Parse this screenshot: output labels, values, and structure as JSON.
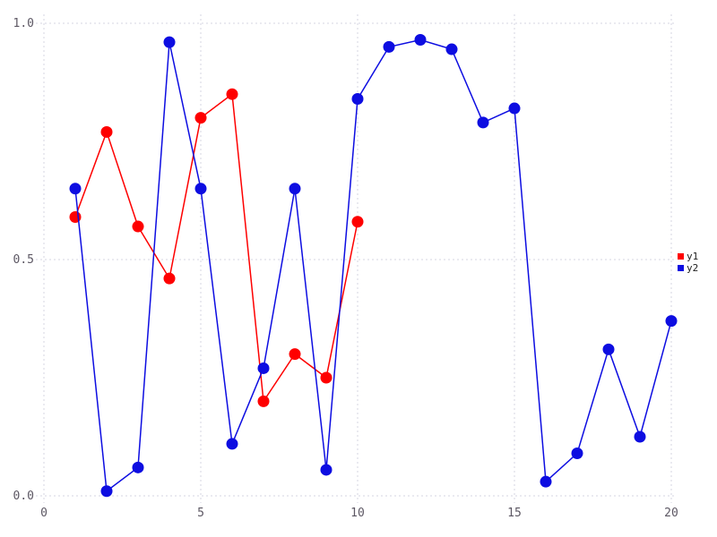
{
  "chart_data": {
    "type": "line",
    "title": "",
    "xlabel": "",
    "ylabel": "",
    "xlim": [
      0,
      20.5
    ],
    "ylim": [
      0,
      1.02
    ],
    "x_ticks": [
      0,
      5,
      10,
      15,
      20
    ],
    "x_tick_labels": [
      "0",
      "5",
      "10",
      "15",
      "20"
    ],
    "y_ticks": [
      0,
      0.5,
      1.0
    ],
    "y_tick_labels": [
      "0.0",
      "0.5",
      "1.0"
    ],
    "grid": "dotted",
    "legend_position": "center-right",
    "marker": "circle",
    "series": [
      {
        "name": "y1",
        "color": "#fe0000",
        "x": [
          1,
          2,
          3,
          4,
          5,
          6,
          7,
          8,
          9,
          10
        ],
        "y": [
          0.59,
          0.77,
          0.57,
          0.46,
          0.8,
          0.85,
          0.2,
          0.3,
          0.25,
          0.58
        ]
      },
      {
        "name": "y2",
        "color": "#0d0de1",
        "x": [
          1,
          2,
          3,
          4,
          5,
          6,
          7,
          8,
          9,
          10,
          11,
          12,
          13,
          14,
          15,
          16,
          17,
          18,
          19,
          20
        ],
        "y": [
          0.65,
          0.01,
          0.06,
          0.96,
          0.65,
          0.11,
          0.27,
          0.65,
          0.055,
          0.84,
          0.95,
          0.965,
          0.945,
          0.79,
          0.82,
          0.03,
          0.09,
          0.31,
          0.125,
          0.37
        ]
      }
    ]
  },
  "legend": {
    "items": [
      {
        "label": "y1",
        "color": "#fe0000"
      },
      {
        "label": "y2",
        "color": "#0d0de1"
      }
    ]
  },
  "colors": {
    "background": "#ffffff",
    "grid": "#d6d6e0",
    "tick_label": "#5c5763"
  }
}
